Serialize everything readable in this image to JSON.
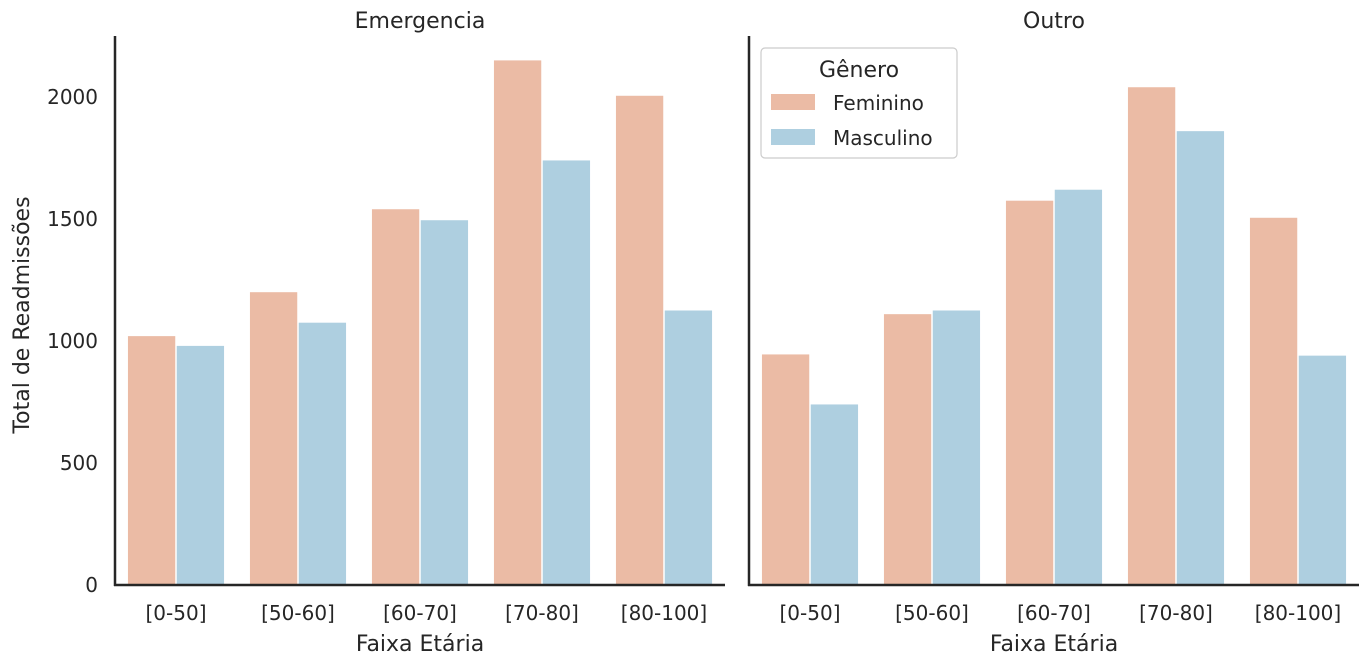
{
  "chart_data": {
    "type": "bar",
    "ylabel": "Total de Readmissões",
    "ylim": [
      0,
      2250
    ],
    "yticks": [
      0,
      500,
      1000,
      1500,
      2000
    ],
    "grid": false,
    "legend": {
      "title": "Gênero",
      "position": "top-left of right panel",
      "entries": [
        "Feminino",
        "Masculino"
      ]
    },
    "colors": {
      "Feminino": "#ebbba5",
      "Masculino": "#aecfe0"
    },
    "panels": [
      {
        "title": "Emergencia",
        "xlabel": "Faixa Etária",
        "categories": [
          "[0-50]",
          "[50-60]",
          "[60-70]",
          "[70-80]",
          "[80-100]"
        ],
        "series": [
          {
            "name": "Feminino",
            "values": [
              1020,
              1200,
              1540,
              2150,
              2005
            ]
          },
          {
            "name": "Masculino",
            "values": [
              980,
              1075,
              1495,
              1740,
              1125
            ]
          }
        ]
      },
      {
        "title": "Outro",
        "xlabel": "Faixa Etária",
        "categories": [
          "[0-50]",
          "[50-60]",
          "[60-70]",
          "[70-80]",
          "[80-100]"
        ],
        "series": [
          {
            "name": "Feminino",
            "values": [
              945,
              1110,
              1575,
              2040,
              1505
            ]
          },
          {
            "name": "Masculino",
            "values": [
              740,
              1125,
              1620,
              1860,
              940
            ]
          }
        ]
      }
    ]
  }
}
